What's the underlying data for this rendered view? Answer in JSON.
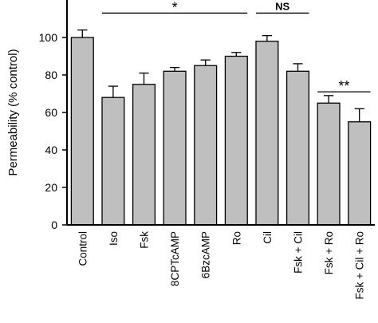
{
  "chart_data": {
    "type": "bar",
    "title": "",
    "xlabel": "",
    "ylabel": "Permeability (% control)",
    "ylim": [
      0,
      120
    ],
    "yticks": [
      0,
      20,
      40,
      60,
      80,
      100
    ],
    "grid": false,
    "categories": [
      "Control",
      "Iso",
      "Fsk",
      "8CPTcAMP",
      "6BzcAMP",
      "Ro",
      "Cil",
      "Fsk + Cil",
      "Fsk + Ro",
      "Fsk + Cil + Ro"
    ],
    "values": [
      100,
      68,
      75,
      82,
      85,
      90,
      98,
      82,
      65,
      55
    ],
    "errors": [
      4,
      6,
      6,
      2,
      3,
      2,
      3,
      4,
      4,
      7
    ],
    "bar_color": "#bfbfbf",
    "edge_color": "#000000",
    "annotations": [
      {
        "label": "*",
        "from": "Iso",
        "to": "Ro",
        "y": 113
      },
      {
        "label": "NS",
        "from": "Cil",
        "to": "Fsk + Cil",
        "y": 113
      },
      {
        "label": "**",
        "from": "Fsk + Ro",
        "to": "Fsk + Cil + Ro",
        "y": 71
      }
    ]
  }
}
